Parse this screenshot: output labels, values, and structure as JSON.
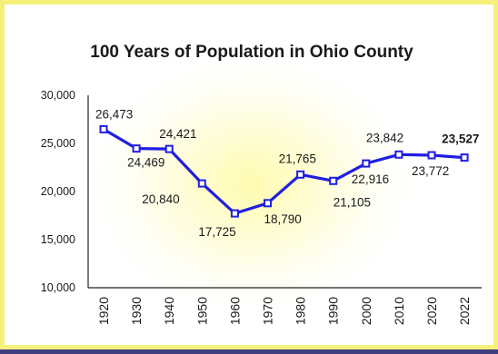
{
  "chart_data": {
    "type": "line",
    "title": "100 Years of Population in Ohio County",
    "xlabel": "",
    "ylabel": "",
    "categories": [
      "1920",
      "1930",
      "1940",
      "1950",
      "1960",
      "1970",
      "1980",
      "1990",
      "2000",
      "2010",
      "2020",
      "2022"
    ],
    "values": [
      26473,
      24469,
      24421,
      20840,
      17725,
      18790,
      21765,
      21105,
      22916,
      23842,
      23772,
      23527
    ],
    "data_labels": [
      "26,473",
      "24,469",
      "24,421",
      "20,840",
      "17,725",
      "18,790",
      "21,765",
      "21,105",
      "22,916",
      "23,842",
      "23,772",
      "23,527"
    ],
    "highlighted_label_index": 11,
    "ylim": [
      10000,
      30000
    ],
    "yticks": [
      10000,
      15000,
      20000,
      25000,
      30000
    ],
    "ytick_labels": [
      "10,000",
      "15,000",
      "20,000",
      "25,000",
      "30,000"
    ],
    "grid": false,
    "legend": "none",
    "colors": {
      "line": "#1f1fe0",
      "marker_fill": "#ffffff",
      "frame_border": "#f5f07a",
      "background": "#3f3f7f",
      "glow": "#fffbb0"
    }
  }
}
